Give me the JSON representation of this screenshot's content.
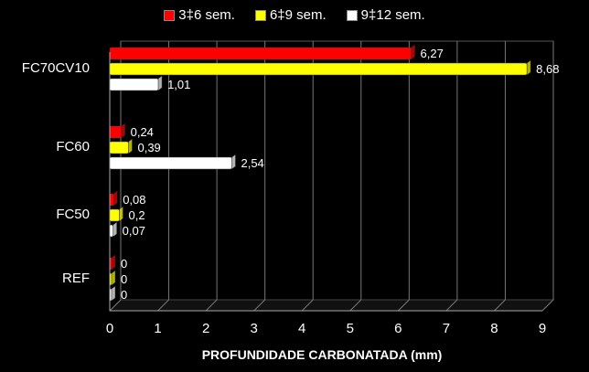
{
  "chart_data": {
    "type": "bar",
    "orientation": "horizontal",
    "title": "",
    "xlabel": "PROFUNDIDADE CARBONATADA (mm)",
    "ylabel": "",
    "categories": [
      "FC70CV10",
      "FC60",
      "FC50",
      "REF"
    ],
    "xlim": [
      0,
      9
    ],
    "xticks": [
      "0",
      "1",
      "2",
      "3",
      "4",
      "5",
      "6",
      "7",
      "8",
      "9"
    ],
    "grid": true,
    "legend_position": "top",
    "series": [
      {
        "name": "3‡6 sem.",
        "color": "#ff0000",
        "values": [
          6.27,
          0.24,
          0.08,
          0
        ],
        "labels": [
          "6,27",
          "0,24",
          "0,08",
          "0"
        ]
      },
      {
        "name": "6‡9 sem.",
        "color": "#ffff00",
        "values": [
          8.68,
          0.39,
          0.2,
          0
        ],
        "labels": [
          "8,68",
          "0,39",
          "0,2",
          "0"
        ]
      },
      {
        "name": "9‡12 sem.",
        "color": "#ffffff",
        "values": [
          1.01,
          2.54,
          0.07,
          0
        ],
        "labels": [
          "1,01",
          "2,54",
          "0,07",
          "0"
        ]
      }
    ]
  }
}
